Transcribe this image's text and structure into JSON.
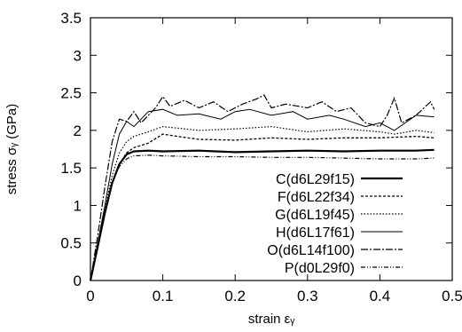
{
  "chart_data": {
    "type": "line",
    "xlabel": "strain  εᵧ",
    "ylabel": "stress  σᵧ (GPa)",
    "xlim": [
      0,
      0.5
    ],
    "ylim": [
      0,
      3.5
    ],
    "x_ticks": [
      "0",
      "0.1",
      "0.2",
      "0.3",
      "0.4",
      "0.5"
    ],
    "y_ticks": [
      "0",
      "0.5",
      "1",
      "1.5",
      "2",
      "2.5",
      "3",
      "3.5"
    ],
    "grid": false,
    "legend_position": "lower-right",
    "series": [
      {
        "name": "C(d6L29f15)",
        "x": [
          0,
          0.01,
          0.02,
          0.03,
          0.04,
          0.05,
          0.06,
          0.08,
          0.1,
          0.15,
          0.2,
          0.25,
          0.3,
          0.35,
          0.4,
          0.45,
          0.475
        ],
        "y": [
          0,
          0.45,
          0.9,
          1.3,
          1.55,
          1.68,
          1.72,
          1.73,
          1.72,
          1.73,
          1.71,
          1.72,
          1.73,
          1.72,
          1.73,
          1.73,
          1.74
        ]
      },
      {
        "name": "F(d6L22f34)",
        "x": [
          0,
          0.01,
          0.02,
          0.03,
          0.04,
          0.05,
          0.06,
          0.08,
          0.1,
          0.12,
          0.15,
          0.2,
          0.25,
          0.3,
          0.35,
          0.4,
          0.45,
          0.475
        ],
        "y": [
          0,
          0.45,
          0.9,
          1.3,
          1.55,
          1.7,
          1.77,
          1.83,
          1.95,
          1.92,
          1.88,
          1.87,
          1.9,
          1.88,
          1.9,
          1.9,
          1.92,
          1.9
        ]
      },
      {
        "name": "G(d6L19f45)",
        "x": [
          0,
          0.01,
          0.02,
          0.03,
          0.04,
          0.05,
          0.06,
          0.08,
          0.1,
          0.15,
          0.2,
          0.25,
          0.3,
          0.35,
          0.4,
          0.42,
          0.45,
          0.475
        ],
        "y": [
          0,
          0.48,
          0.95,
          1.4,
          1.7,
          1.85,
          1.92,
          1.98,
          2.05,
          2.0,
          2.02,
          2.05,
          1.98,
          2.02,
          1.98,
          1.95,
          2.0,
          1.97
        ]
      },
      {
        "name": "H(d6L17f61)",
        "x": [
          0,
          0.01,
          0.02,
          0.03,
          0.04,
          0.05,
          0.06,
          0.07,
          0.08,
          0.1,
          0.12,
          0.15,
          0.18,
          0.2,
          0.22,
          0.25,
          0.28,
          0.3,
          0.33,
          0.35,
          0.38,
          0.4,
          0.42,
          0.45,
          0.475
        ],
        "y": [
          0,
          0.5,
          1.0,
          1.55,
          1.95,
          2.12,
          2.05,
          2.15,
          2.25,
          2.28,
          2.2,
          2.22,
          2.15,
          2.25,
          2.28,
          2.2,
          2.25,
          2.15,
          2.2,
          2.15,
          2.05,
          2.1,
          2.0,
          2.2,
          2.18
        ]
      },
      {
        "name": "O(d6L14f100)",
        "x": [
          0,
          0.01,
          0.02,
          0.03,
          0.04,
          0.05,
          0.06,
          0.07,
          0.08,
          0.09,
          0.1,
          0.11,
          0.13,
          0.15,
          0.17,
          0.19,
          0.21,
          0.23,
          0.24,
          0.25,
          0.27,
          0.3,
          0.32,
          0.34,
          0.36,
          0.38,
          0.4,
          0.41,
          0.42,
          0.43,
          0.45,
          0.47,
          0.475
        ],
        "y": [
          0,
          0.6,
          1.25,
          1.85,
          2.15,
          2.12,
          2.25,
          2.1,
          2.2,
          2.3,
          2.45,
          2.32,
          2.4,
          2.3,
          2.38,
          2.25,
          2.35,
          2.42,
          2.47,
          2.3,
          2.35,
          2.3,
          2.38,
          2.25,
          2.3,
          2.1,
          2.05,
          2.2,
          2.43,
          2.1,
          2.2,
          2.38,
          2.28
        ]
      },
      {
        "name": "P(d0L29f0)",
        "x": [
          0,
          0.01,
          0.02,
          0.03,
          0.04,
          0.05,
          0.06,
          0.08,
          0.1,
          0.15,
          0.2,
          0.25,
          0.3,
          0.35,
          0.4,
          0.45,
          0.475
        ],
        "y": [
          0,
          0.45,
          0.9,
          1.3,
          1.52,
          1.62,
          1.66,
          1.67,
          1.66,
          1.65,
          1.65,
          1.64,
          1.64,
          1.63,
          1.62,
          1.62,
          1.63
        ]
      }
    ]
  }
}
